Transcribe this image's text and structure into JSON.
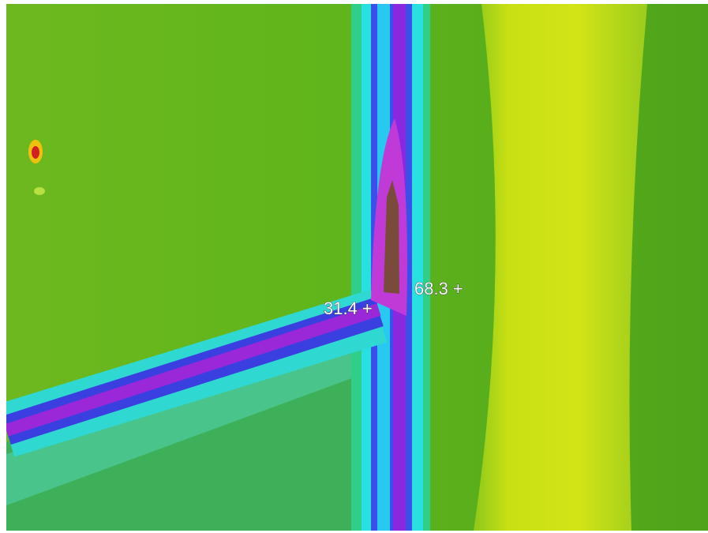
{
  "markers": [
    {
      "label": "31.4 +"
    },
    {
      "label": "68.3 +"
    }
  ]
}
